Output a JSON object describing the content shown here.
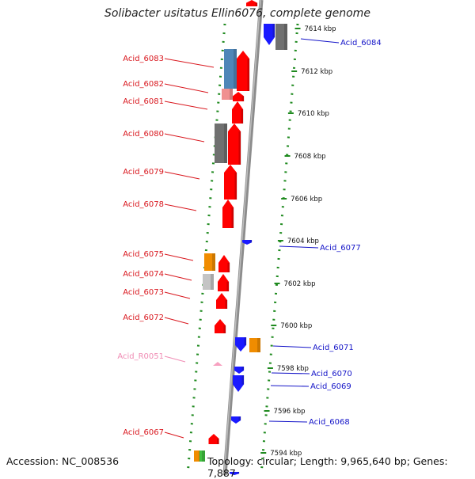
{
  "header": {
    "title": "Solibacter usitatus Ellin6076, complete genome"
  },
  "footer": {
    "accession": "Accession: NC_008536",
    "topology": "Topology: circular; Length: 9,965,640 bp; Genes: 7,887"
  },
  "kbp_ticks": [
    {
      "label": "7614 kbp"
    },
    {
      "label": "7612 kbp"
    },
    {
      "label": "7610 kbp"
    },
    {
      "label": "7608 kbp"
    },
    {
      "label": "7606 kbp"
    },
    {
      "label": "7604 kbp"
    },
    {
      "label": "7602 kbp"
    },
    {
      "label": "7600 kbp"
    },
    {
      "label": "7598 kbp"
    },
    {
      "label": "7596 kbp"
    },
    {
      "label": "7594 kbp"
    }
  ],
  "gene_labels_left": [
    {
      "name": "Acid_6083",
      "color": "#d9171e"
    },
    {
      "name": "Acid_6082",
      "color": "#d9171e"
    },
    {
      "name": "Acid_6081",
      "color": "#d9171e"
    },
    {
      "name": "Acid_6080",
      "color": "#d9171e"
    },
    {
      "name": "Acid_6079",
      "color": "#d9171e"
    },
    {
      "name": "Acid_6078",
      "color": "#d9171e"
    },
    {
      "name": "Acid_6075",
      "color": "#d9171e"
    },
    {
      "name": "Acid_6074",
      "color": "#d9171e"
    },
    {
      "name": "Acid_6073",
      "color": "#d9171e"
    },
    {
      "name": "Acid_6072",
      "color": "#d9171e"
    },
    {
      "name": "Acid_R0051",
      "color": "#f08cb4"
    },
    {
      "name": "Acid_6067",
      "color": "#d9171e"
    }
  ],
  "gene_labels_right": [
    {
      "name": "Acid_6084",
      "color": "#1414c8"
    },
    {
      "name": "Acid_6077",
      "color": "#1414c8"
    },
    {
      "name": "Acid_6071",
      "color": "#1414c8"
    },
    {
      "name": "Acid_6070",
      "color": "#1414c8"
    },
    {
      "name": "Acid_6069",
      "color": "#1414c8"
    },
    {
      "name": "Acid_6068",
      "color": "#1414c8"
    }
  ],
  "colors": {
    "forward_gene": "#ff0000",
    "reverse_gene": "#1a1aff",
    "backbone": "#8c8c8c",
    "dotted_guide": "#1f8a1f",
    "tick_text": "#111111",
    "cog_blue": "#4f86b8",
    "cog_gray": "#707070",
    "cog_orange": "#f08c00",
    "cog_pink": "#f09090",
    "cog_lightgray": "#c4c4c4",
    "cog_green": "#40c040",
    "rna_pink": "#f7a0c0"
  }
}
